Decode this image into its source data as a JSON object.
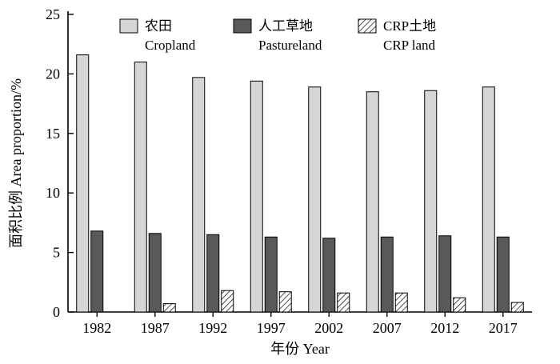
{
  "chart_data": {
    "type": "bar",
    "title": "",
    "categories": [
      "1982",
      "1987",
      "1992",
      "1997",
      "2002",
      "2007",
      "2012",
      "2017"
    ],
    "series": [
      {
        "name_cn": "农田",
        "name_en": "Cropland",
        "style": "light",
        "values": [
          21.6,
          21.0,
          19.7,
          19.4,
          18.9,
          18.5,
          18.6,
          18.9
        ]
      },
      {
        "name_cn": "人工草地",
        "name_en": "Pastureland",
        "style": "dark",
        "values": [
          6.8,
          6.6,
          6.5,
          6.3,
          6.2,
          6.3,
          6.4,
          6.3
        ]
      },
      {
        "name_cn": "CRP土地",
        "name_en": "CRP land",
        "style": "hatch",
        "values": [
          0,
          0.7,
          1.8,
          1.7,
          1.6,
          1.6,
          1.2,
          0.8
        ]
      }
    ],
    "xlabel": "年份 Year",
    "ylabel": "面积比例 Area proportion/%",
    "ylim": [
      0,
      25
    ],
    "yticks": [
      0,
      5,
      10,
      15,
      20,
      25
    ],
    "legend_position": "top-inside",
    "grid": false
  },
  "colors": {
    "bar_light": "#d6d6d6",
    "bar_dark": "#595959",
    "axis": "#000000",
    "background": "#ffffff"
  }
}
